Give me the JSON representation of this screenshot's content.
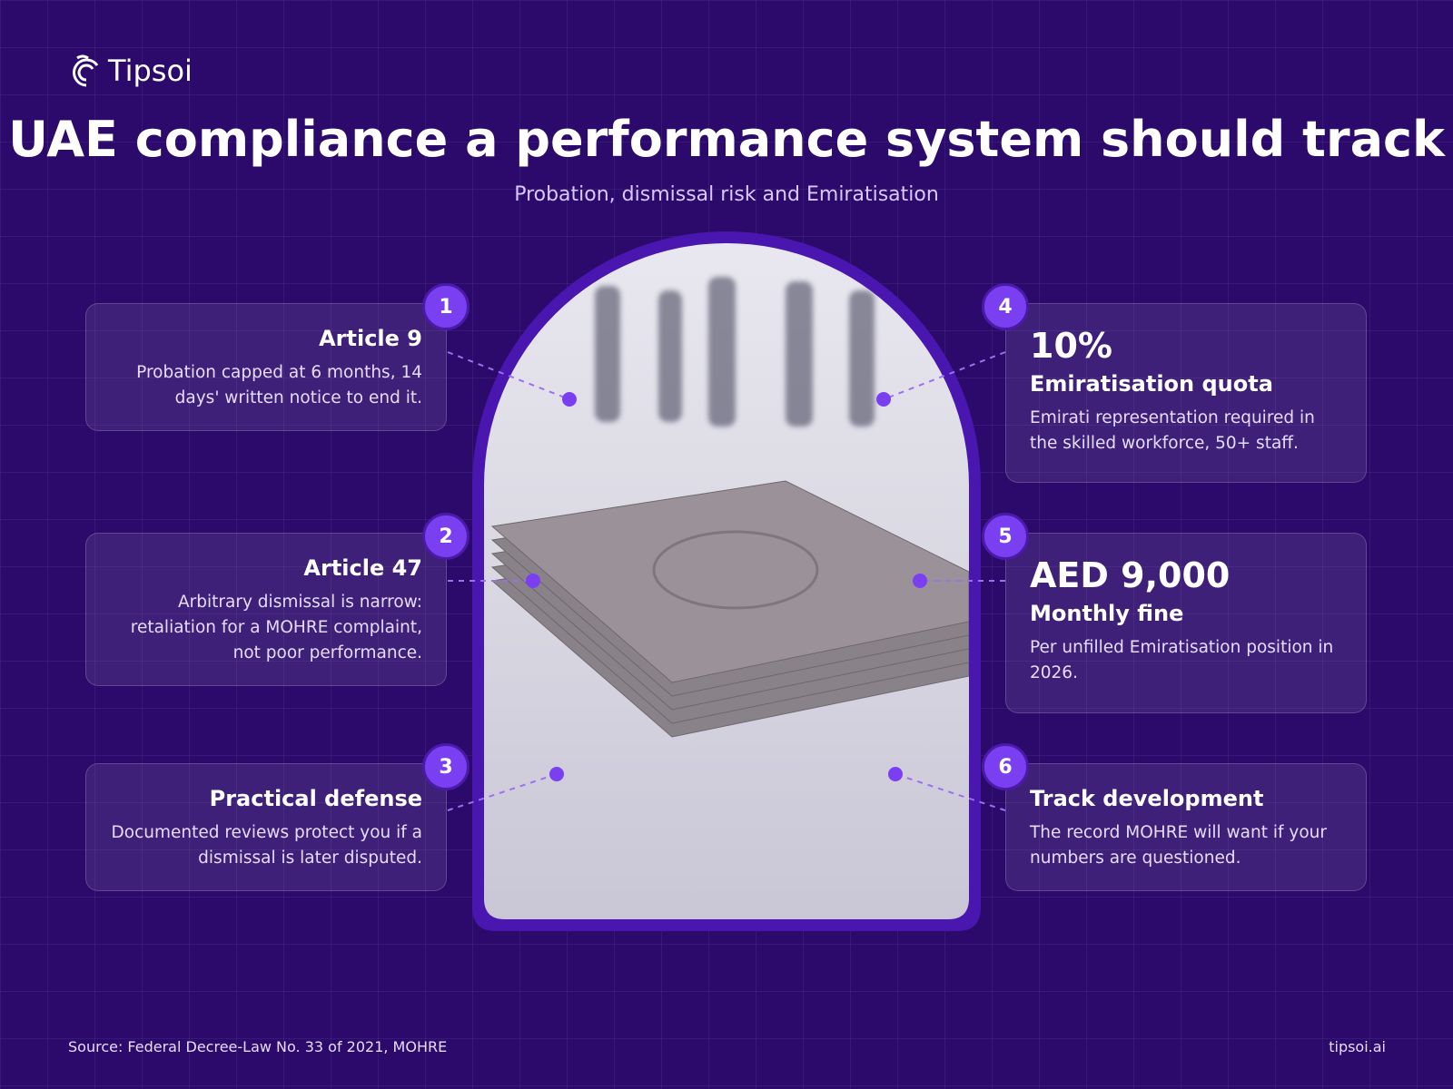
{
  "header": {
    "brand": "Tipsoi",
    "title": "UAE compliance a performance system should track",
    "subtitle": "Probation, dismissal risk and Emiratisation"
  },
  "cards": [
    {
      "number": "1",
      "heading": "Article 9",
      "text": "Probation capped at 6 months, 14 days' written notice to end it."
    },
    {
      "number": "2",
      "heading": "Article 47",
      "text": "Arbitrary dismissal is narrow: retaliation for a MOHRE complaint, not poor performance."
    },
    {
      "number": "3",
      "heading": "Practical defense",
      "text": "Documented reviews protect you if a dismissal is later disputed."
    },
    {
      "number": "4",
      "stat": "10%",
      "heading": "Emiratisation quota",
      "text": "Emirati representation required in the skilled workforce, 50+ staff."
    },
    {
      "number": "5",
      "stat": "AED 9,000",
      "heading": "Monthly fine",
      "text": "Per unfilled Emiratisation position in 2026."
    },
    {
      "number": "6",
      "heading": "Track development",
      "text": "The record MOHRE will want if your numbers are questioned."
    }
  ],
  "footer": {
    "source": "Source: Federal Decree-Law No. 33 of 2021, MOHRE",
    "site": "tipsoi.ai"
  }
}
